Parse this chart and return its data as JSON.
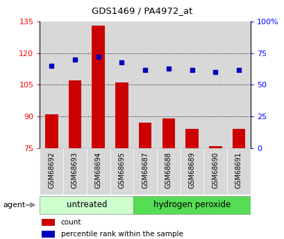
{
  "title": "GDS1469 / PA4972_at",
  "samples": [
    "GSM68692",
    "GSM68693",
    "GSM68694",
    "GSM68695",
    "GSM68687",
    "GSM68688",
    "GSM68689",
    "GSM68690",
    "GSM68691"
  ],
  "counts": [
    91,
    107,
    133,
    106,
    87,
    89,
    84,
    76,
    84
  ],
  "percentiles": [
    65,
    70,
    72,
    68,
    62,
    63,
    62,
    60,
    62
  ],
  "ylim_left": [
    75,
    135
  ],
  "ylim_right": [
    0,
    100
  ],
  "yticks_left": [
    75,
    90,
    105,
    120,
    135
  ],
  "yticks_right": [
    0,
    25,
    50,
    75,
    100
  ],
  "yticklabels_right": [
    "0",
    "25",
    "50",
    "75",
    "100%"
  ],
  "bar_color": "#cc0000",
  "dot_color": "#0000bb",
  "bar_width": 0.55,
  "group1_label": "untreated",
  "group2_label": "hydrogen peroxide",
  "group1_color": "#ccffcc",
  "group2_color": "#55dd55",
  "group1_indices": [
    0,
    1,
    2,
    3
  ],
  "group2_indices": [
    4,
    5,
    6,
    7,
    8
  ],
  "agent_label": "agent",
  "legend_count_label": "count",
  "legend_pct_label": "percentile rank within the sample",
  "cell_bg": "#d8d8d8",
  "plot_bg": "#ffffff",
  "grid_color": "#333333",
  "grid_ticks": [
    90,
    105,
    120
  ]
}
